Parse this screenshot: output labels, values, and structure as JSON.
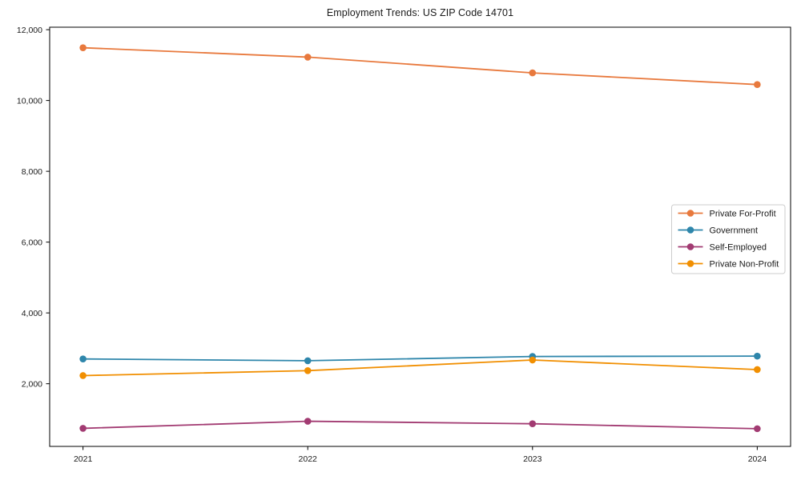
{
  "window": {
    "background": "#ffffff",
    "axis_color": "#000000",
    "tick_label_color": "#1a1a1a"
  },
  "chart_data": {
    "type": "line",
    "title": "Employment Trends: US ZIP Code 14701",
    "xlabel": "",
    "ylabel": "",
    "x_categories": [
      "2021",
      "2022",
      "2023",
      "2024"
    ],
    "series": [
      {
        "name": "Private For-Profit",
        "color": "#E8793D",
        "values": [
          11490,
          11225,
          10780,
          10450
        ]
      },
      {
        "name": "Government",
        "color": "#2E86AB",
        "values": [
          2700,
          2650,
          2770,
          2780
        ]
      },
      {
        "name": "Self-Employed",
        "color": "#A23B72",
        "values": [
          740,
          940,
          870,
          730
        ]
      },
      {
        "name": "Private Non-Profit",
        "color": "#F18F01",
        "values": [
          2230,
          2370,
          2670,
          2400
        ]
      }
    ],
    "ylim": [
      230,
      12070
    ],
    "yticks": [
      2000,
      4000,
      6000,
      8000,
      10000,
      12000
    ],
    "ytick_labels": [
      "2,000",
      "4,000",
      "6,000",
      "8,000",
      "10,000",
      "12,000"
    ],
    "grid": false,
    "marker": "circle",
    "legend": {
      "position": "center-right",
      "border_color": "#cccccc",
      "background": "#ffffff",
      "entries": [
        "Private For-Profit",
        "Government",
        "Self-Employed",
        "Private Non-Profit"
      ]
    }
  }
}
